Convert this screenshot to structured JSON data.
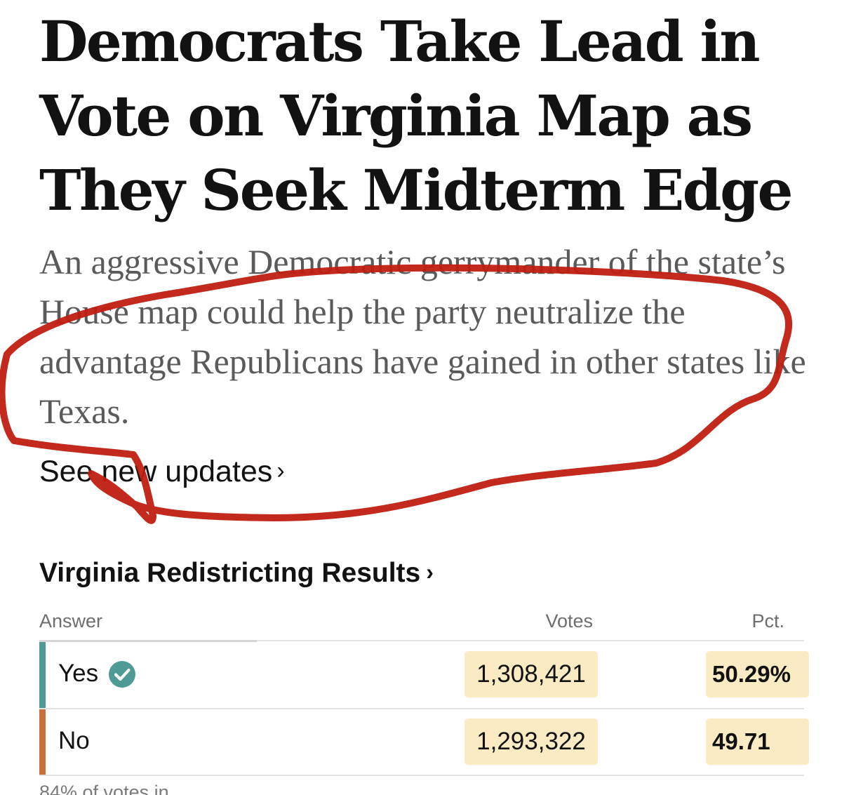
{
  "article": {
    "headline": "Democrats Take Lead in Vote on Virginia Map as They Seek Midterm Edge",
    "summary": "An aggressive Democratic gerrymander of the state’s House map could help the party neutralize the advantage Republicans have gained in other states like Texas.",
    "updates_link": "See new updates",
    "chevron": "›"
  },
  "results": {
    "title": "Virginia Redistricting Results",
    "chevron": "›",
    "columns": {
      "answer": "Answer",
      "votes": "Votes",
      "pct": "Pct."
    },
    "rows": [
      {
        "answer": "Yes",
        "votes": "1,308,421",
        "pct": "50.29%",
        "winner": true,
        "bar_color": "#4f9a94"
      },
      {
        "answer": "No",
        "votes": "1,293,322",
        "pct": "49.71",
        "winner": false,
        "bar_color": "#c9703a"
      }
    ],
    "check_icon": "check-circle-icon",
    "check_color": "#4f9a94",
    "highlight_color": "#faebc4",
    "footnote": "84% of votes in"
  },
  "annotation": {
    "color": "#c01e10"
  }
}
